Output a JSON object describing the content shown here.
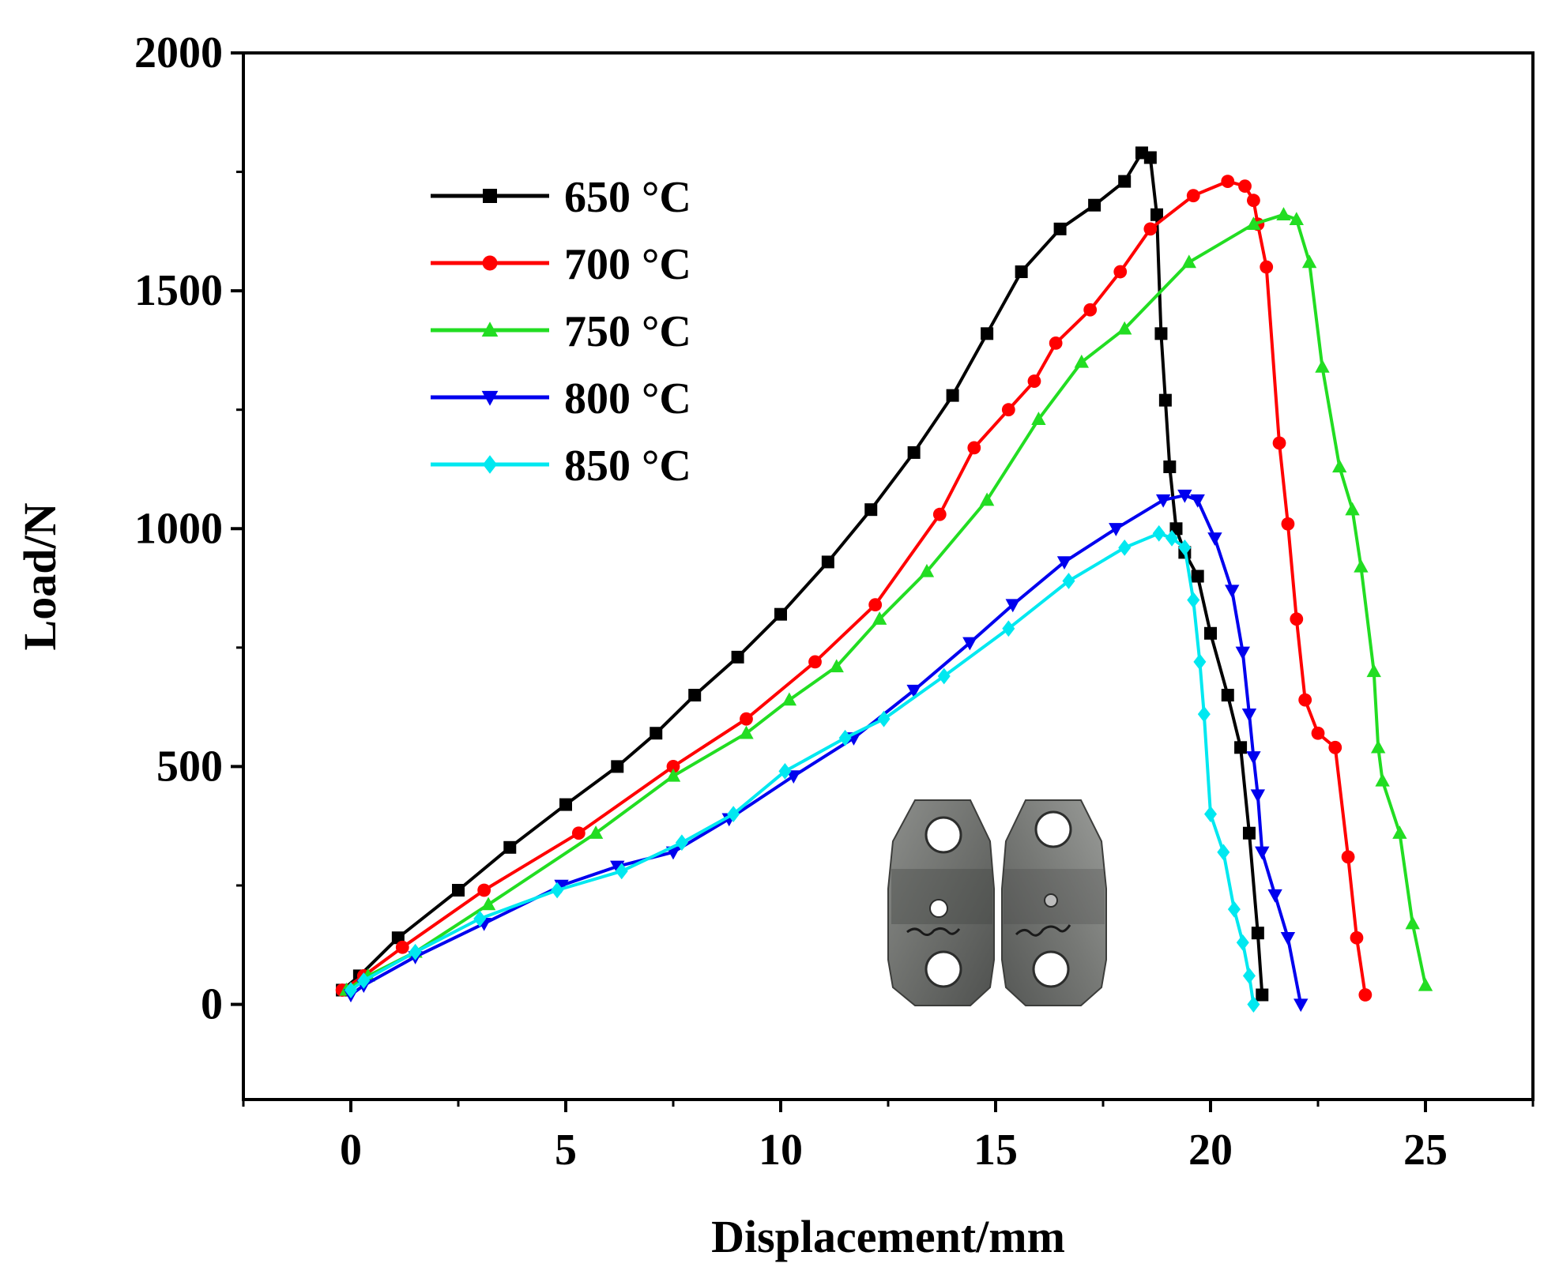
{
  "chart_data": {
    "type": "line",
    "title": "",
    "xlabel": "Displacement/mm",
    "ylabel": "Load/N",
    "xlim": [
      -2.5,
      27.5
    ],
    "ylim": [
      -200,
      2000
    ],
    "xticks": [
      0,
      5,
      10,
      15,
      20,
      25
    ],
    "yticks": [
      0,
      500,
      1000,
      1500,
      2000
    ],
    "xtick_labels": [
      "0",
      "5",
      "10",
      "15",
      "20",
      "25"
    ],
    "ytick_labels": [
      "0",
      "500",
      "1000",
      "1500",
      "2000"
    ],
    "legend_position": "top-left",
    "colors": {
      "650 °C": "#000000",
      "700 °C": "#ff0000",
      "750 °C": "#22dd22",
      "800 °C": "#0000ee",
      "850 °C": "#00e8f0"
    },
    "series": [
      {
        "name": "650 °C",
        "color": "#000000",
        "marker": "square",
        "x": [
          -0.2,
          0.2,
          1.1,
          2.5,
          3.7,
          5.0,
          6.2,
          7.1,
          8.0,
          9.0,
          10.0,
          11.1,
          12.1,
          13.1,
          14.0,
          14.8,
          15.6,
          16.5,
          17.3,
          18.0,
          18.4,
          18.6,
          18.75,
          18.85,
          18.95,
          19.05,
          19.2,
          19.4,
          19.7,
          20.0,
          20.4,
          20.7,
          20.9,
          21.1,
          21.2
        ],
        "y": [
          30,
          60,
          140,
          240,
          330,
          420,
          500,
          570,
          650,
          730,
          820,
          930,
          1040,
          1160,
          1280,
          1410,
          1540,
          1630,
          1680,
          1730,
          1790,
          1780,
          1660,
          1410,
          1270,
          1130,
          1000,
          950,
          900,
          780,
          650,
          540,
          360,
          150,
          20
        ]
      },
      {
        "name": "700 °C",
        "color": "#ff0000",
        "marker": "circle",
        "x": [
          -0.2,
          0.3,
          1.2,
          3.1,
          5.3,
          7.5,
          9.2,
          10.8,
          12.2,
          13.7,
          14.5,
          15.3,
          15.9,
          16.4,
          17.2,
          17.9,
          18.6,
          19.6,
          20.4,
          20.8,
          21.0,
          21.1,
          21.3,
          21.6,
          21.8,
          22.0,
          22.2,
          22.5,
          22.9,
          23.2,
          23.4,
          23.6
        ],
        "y": [
          30,
          60,
          120,
          240,
          360,
          500,
          600,
          720,
          840,
          1030,
          1170,
          1250,
          1310,
          1390,
          1460,
          1540,
          1630,
          1700,
          1730,
          1720,
          1690,
          1640,
          1550,
          1180,
          1010,
          810,
          640,
          570,
          540,
          310,
          140,
          20
        ]
      },
      {
        "name": "750 °C",
        "color": "#22dd22",
        "marker": "triangle-up",
        "x": [
          -0.1,
          0.4,
          1.5,
          3.2,
          5.7,
          7.5,
          9.2,
          10.2,
          11.3,
          12.3,
          13.4,
          14.8,
          16.0,
          17.0,
          18.0,
          19.5,
          21.0,
          21.7,
          22.0,
          22.3,
          22.6,
          23.0,
          23.3,
          23.5,
          23.8,
          23.9,
          24.0,
          24.4,
          24.7,
          25.0
        ],
        "y": [
          30,
          60,
          110,
          210,
          360,
          480,
          570,
          640,
          710,
          810,
          910,
          1060,
          1230,
          1350,
          1420,
          1560,
          1640,
          1660,
          1650,
          1560,
          1340,
          1130,
          1040,
          920,
          700,
          540,
          470,
          360,
          170,
          40
        ]
      },
      {
        "name": "800 °C",
        "color": "#0000ee",
        "marker": "triangle-down",
        "x": [
          0.0,
          0.3,
          1.5,
          3.1,
          4.9,
          6.2,
          7.5,
          8.8,
          10.3,
          11.7,
          13.1,
          14.4,
          15.4,
          16.6,
          17.8,
          18.9,
          19.4,
          19.7,
          20.1,
          20.5,
          20.75,
          20.9,
          21.0,
          21.1,
          21.2,
          21.5,
          21.8,
          22.1
        ],
        "y": [
          20,
          40,
          100,
          170,
          250,
          290,
          320,
          390,
          480,
          560,
          660,
          760,
          840,
          930,
          1000,
          1060,
          1070,
          1060,
          980,
          870,
          740,
          610,
          520,
          440,
          320,
          230,
          140,
          0
        ]
      },
      {
        "name": "850 °C",
        "color": "#00e8f0",
        "marker": "diamond",
        "x": [
          0.0,
          0.3,
          1.5,
          3.0,
          4.8,
          6.3,
          7.7,
          8.9,
          10.1,
          11.5,
          12.4,
          13.8,
          15.3,
          16.7,
          18.0,
          18.8,
          19.1,
          19.4,
          19.6,
          19.75,
          19.85,
          20.0,
          20.3,
          20.55,
          20.75,
          20.9,
          21.0
        ],
        "y": [
          30,
          50,
          110,
          180,
          240,
          280,
          340,
          400,
          490,
          560,
          600,
          690,
          790,
          890,
          960,
          990,
          980,
          960,
          850,
          720,
          610,
          400,
          320,
          200,
          130,
          60,
          0
        ]
      }
    ]
  }
}
